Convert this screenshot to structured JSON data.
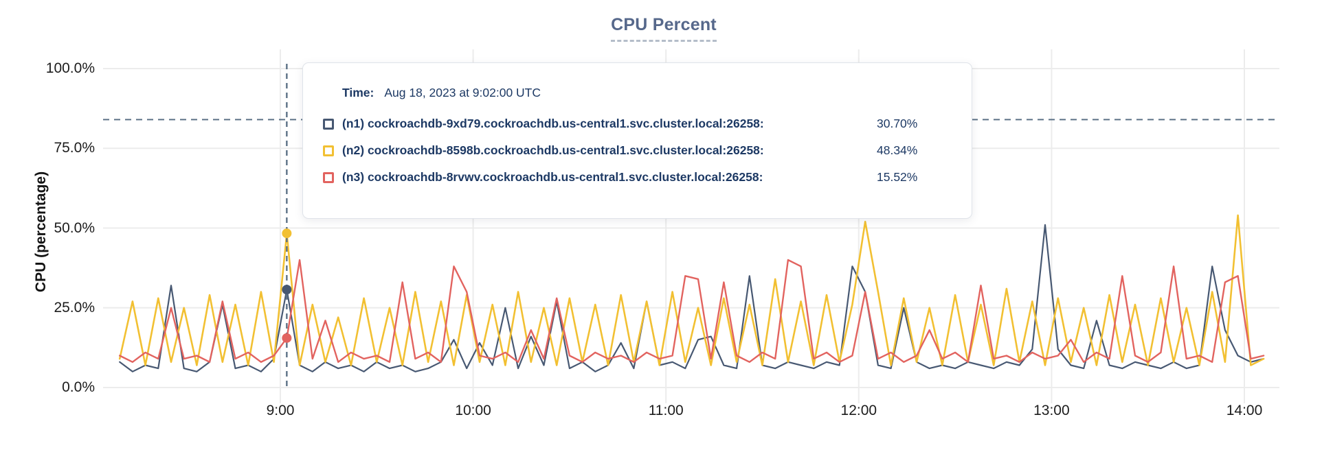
{
  "chart": {
    "title": "CPU Percent",
    "y_axis_label": "CPU (percentage)"
  },
  "tooltip": {
    "time_label": "Time:",
    "time_value": "Aug 18, 2023 at 9:02:00 UTC",
    "rows": [
      {
        "series": "n1",
        "label": "(n1) cockroachdb-9xd79.cockroachdb.us-central1.svc.cluster.local:26258:",
        "value": "30.70%",
        "color": "#475872"
      },
      {
        "series": "n2",
        "label": "(n2) cockroachdb-8598b.cockroachdb.us-central1.svc.cluster.local:26258:",
        "value": "48.34%",
        "color": "#f2c032"
      },
      {
        "series": "n3",
        "label": "(n3) cockroachdb-8rvwv.cockroachdb.us-central1.svc.cluster.local:26258:",
        "value": "15.52%",
        "color": "#e2635f"
      }
    ]
  },
  "chart_data": {
    "type": "line",
    "title": "CPU Percent",
    "xlabel": "",
    "ylabel": "CPU (percentage)",
    "ylim": [
      0,
      100
    ],
    "grid": true,
    "legend_position": "tooltip-overlay",
    "y_ticks": [
      {
        "label": "0.0%",
        "value": 0
      },
      {
        "label": "25.0%",
        "value": 25
      },
      {
        "label": "50.0%",
        "value": 50
      },
      {
        "label": "75.0%",
        "value": 75
      },
      {
        "label": "100.0%",
        "value": 100
      }
    ],
    "x_ticks": [
      {
        "label": "9:00",
        "minutes": 0
      },
      {
        "label": "10:00",
        "minutes": 60
      },
      {
        "label": "11:00",
        "minutes": 120
      },
      {
        "label": "12:00",
        "minutes": 180
      },
      {
        "label": "13:00",
        "minutes": 240
      },
      {
        "label": "14:00",
        "minutes": 300
      }
    ],
    "threshold_line": {
      "value": 84,
      "style": "dashed",
      "color": "#5c7186"
    },
    "hover": {
      "x_minutes": 2,
      "time": "Aug 18, 2023 at 9:02:00 UTC",
      "points": [
        {
          "series": "n1",
          "value": 30.7
        },
        {
          "series": "n2",
          "value": 48.34
        },
        {
          "series": "n3",
          "value": 15.52
        }
      ]
    },
    "sampling": {
      "start_minutes": -50,
      "step_minutes": 4,
      "units": "minutes relative to 9:00 UTC, Aug 18 2023"
    },
    "series": [
      {
        "id": "n1",
        "name": "cockroachdb-9xd79.cockroachdb.us-central1.svc.cluster.local:26258",
        "color": "#475872",
        "stroke_width": 2.2,
        "values": [
          8,
          5,
          7,
          6,
          32,
          6,
          5,
          8,
          26,
          6,
          7,
          5,
          9,
          30.7,
          7,
          5,
          8,
          6,
          7,
          5,
          8,
          6,
          7,
          5,
          6,
          8,
          15,
          6,
          14,
          7,
          25,
          6,
          16,
          7,
          27,
          6,
          8,
          5,
          7,
          14,
          6,
          27,
          7,
          8,
          6,
          15,
          16,
          7,
          6,
          35,
          7,
          6,
          8,
          7,
          6,
          8,
          7,
          38,
          30,
          7,
          6,
          25,
          8,
          6,
          7,
          6,
          8,
          7,
          6,
          8,
          7,
          12,
          51,
          12,
          7,
          6,
          21,
          7,
          6,
          8,
          7,
          6,
          8,
          6,
          7,
          38,
          18,
          10,
          8,
          9
        ]
      },
      {
        "id": "n2",
        "name": "cockroachdb-8598b.cockroachdb.us-central1.svc.cluster.local:26258",
        "color": "#f2c032",
        "stroke_width": 2.6,
        "values": [
          9,
          27,
          7,
          28,
          8,
          25,
          7,
          29,
          8,
          26,
          7,
          30,
          8,
          48.3,
          7,
          26,
          8,
          22,
          7,
          28,
          8,
          25,
          7,
          30,
          8,
          27,
          7,
          29,
          8,
          26,
          7,
          30,
          8,
          25,
          7,
          28,
          8,
          26,
          7,
          29,
          8,
          27,
          7,
          30,
          8,
          25,
          7,
          28,
          8,
          26,
          7,
          34,
          8,
          27,
          7,
          29,
          8,
          26,
          52,
          30,
          7,
          28,
          8,
          25,
          7,
          29,
          8,
          26,
          7,
          31,
          8,
          27,
          7,
          28,
          8,
          25,
          7,
          29,
          8,
          26,
          7,
          28,
          8,
          25,
          7,
          30,
          8,
          54,
          7,
          9
        ]
      },
      {
        "id": "n3",
        "name": "cockroachdb-8rvwv.cockroachdb.us-central1.svc.cluster.local:26258",
        "color": "#e2635f",
        "stroke_width": 2.4,
        "values": [
          10,
          8,
          11,
          9,
          25,
          9,
          10,
          8,
          27,
          9,
          11,
          8,
          10,
          15.5,
          40,
          9,
          21,
          8,
          11,
          9,
          10,
          8,
          33,
          9,
          11,
          8,
          38,
          30,
          10,
          9,
          11,
          8,
          18,
          9,
          28,
          10,
          8,
          11,
          9,
          10,
          8,
          11,
          9,
          10,
          35,
          34,
          9,
          33,
          10,
          8,
          11,
          9,
          40,
          38,
          9,
          11,
          8,
          10,
          30,
          9,
          11,
          8,
          10,
          18,
          9,
          11,
          8,
          32,
          9,
          10,
          8,
          11,
          9,
          10,
          15,
          8,
          11,
          9,
          35,
          10,
          8,
          11,
          38,
          9,
          10,
          8,
          33,
          35,
          9,
          10
        ]
      }
    ]
  }
}
